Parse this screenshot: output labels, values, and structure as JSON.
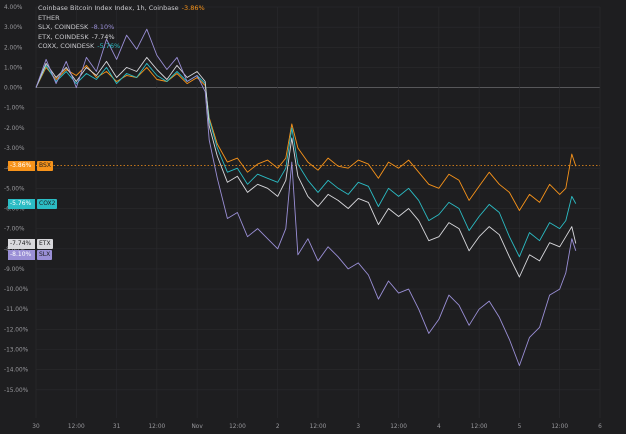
{
  "chart_data": {
    "type": "line",
    "title": "",
    "xlabel": "",
    "ylabel": "",
    "ylim": [
      -16,
      4
    ],
    "y_ticks": [
      "4.00%",
      "3.00%",
      "2.00%",
      "1.00%",
      "0.00%",
      "-1.00%",
      "-2.00%",
      "-3.00%",
      "-4.00%",
      "-5.00%",
      "-6.00%",
      "-7.00%",
      "-8.00%",
      "-9.00%",
      "-10.00%",
      "-11.00%",
      "-12.00%",
      "-13.00%",
      "-14.00%",
      "-15.00%"
    ],
    "x_ticks": [
      "30",
      "12:00",
      "31",
      "12:00",
      "Nov",
      "12:00",
      "2",
      "12:00",
      "3",
      "12:00",
      "4",
      "12:00",
      "5",
      "12:00",
      "6"
    ],
    "reference_line_value": -3.86,
    "grid": true,
    "legend_placement": "top-left",
    "legend": [
      {
        "label": "Coinbase Bitcoin Index Index, 1h, Coinbase",
        "change": "-3.86%",
        "color": "#f7931a"
      },
      {
        "label": "ETHER",
        "change": "",
        "color": "#a9a9ad"
      },
      {
        "label": "SLX, COINDESK",
        "change": "-8.10%",
        "color": "#9a8fd6"
      },
      {
        "label": "ETX, COINDESK",
        "change": "-7.74%",
        "color": "#d8d8dc"
      },
      {
        "label": "COXX, COINDESK",
        "change": "-5.76%",
        "color": "#2bbcc4"
      }
    ],
    "series": [
      {
        "key": "btc",
        "color": "#f7931a",
        "end_label": "-3.86%",
        "end_code": "BSX",
        "points": [
          [
            0,
            0
          ],
          [
            0.5,
            1.0
          ],
          [
            1,
            0.4
          ],
          [
            1.5,
            0.9
          ],
          [
            2,
            0.6
          ],
          [
            2.5,
            1.1
          ],
          [
            3,
            0.5
          ],
          [
            3.5,
            0.8
          ],
          [
            4,
            0.3
          ],
          [
            4.5,
            0.6
          ],
          [
            5,
            0.5
          ],
          [
            5.5,
            1.0
          ],
          [
            6,
            0.4
          ],
          [
            6.5,
            0.3
          ],
          [
            7,
            0.7
          ],
          [
            7.5,
            0.2
          ],
          [
            8,
            0.5
          ],
          [
            8.4,
            0.1
          ],
          [
            8.6,
            -1.5
          ],
          [
            9,
            -2.8
          ],
          [
            9.5,
            -3.7
          ],
          [
            10,
            -3.5
          ],
          [
            10.5,
            -4.2
          ],
          [
            11,
            -3.8
          ],
          [
            11.5,
            -3.6
          ],
          [
            12,
            -4.0
          ],
          [
            12.4,
            -3.5
          ],
          [
            12.7,
            -1.8
          ],
          [
            13,
            -3.0
          ],
          [
            13.5,
            -3.7
          ],
          [
            14,
            -4.1
          ],
          [
            14.5,
            -3.5
          ],
          [
            15,
            -3.9
          ],
          [
            15.5,
            -4.0
          ],
          [
            16,
            -3.6
          ],
          [
            16.5,
            -3.8
          ],
          [
            17,
            -4.5
          ],
          [
            17.5,
            -3.7
          ],
          [
            18,
            -4.0
          ],
          [
            18.5,
            -3.6
          ],
          [
            19,
            -4.2
          ],
          [
            19.5,
            -4.8
          ],
          [
            20,
            -5.0
          ],
          [
            20.5,
            -4.3
          ],
          [
            21,
            -4.6
          ],
          [
            21.5,
            -5.6
          ],
          [
            22,
            -4.9
          ],
          [
            22.5,
            -4.2
          ],
          [
            23,
            -4.8
          ],
          [
            23.5,
            -5.2
          ],
          [
            24,
            -6.1
          ],
          [
            24.5,
            -5.3
          ],
          [
            25,
            -5.7
          ],
          [
            25.5,
            -4.8
          ],
          [
            26,
            -5.3
          ],
          [
            26.3,
            -5.0
          ],
          [
            26.6,
            -3.3
          ],
          [
            26.8,
            -3.9
          ]
        ]
      },
      {
        "key": "ethx",
        "color": "#2bbcc4",
        "end_label": "-5.76%",
        "end_code": "COX2",
        "points": [
          [
            0,
            0
          ],
          [
            0.5,
            1.1
          ],
          [
            1,
            0.3
          ],
          [
            1.5,
            0.8
          ],
          [
            2,
            0.2
          ],
          [
            2.5,
            0.7
          ],
          [
            3,
            0.4
          ],
          [
            3.5,
            1.0
          ],
          [
            4,
            0.2
          ],
          [
            4.5,
            0.7
          ],
          [
            5,
            0.5
          ],
          [
            5.5,
            1.2
          ],
          [
            6,
            0.6
          ],
          [
            6.5,
            0.3
          ],
          [
            7,
            0.8
          ],
          [
            7.5,
            0.3
          ],
          [
            8,
            0.6
          ],
          [
            8.4,
            0.2
          ],
          [
            8.6,
            -1.6
          ],
          [
            9,
            -3.0
          ],
          [
            9.5,
            -4.2
          ],
          [
            10,
            -4.0
          ],
          [
            10.5,
            -4.8
          ],
          [
            11,
            -4.3
          ],
          [
            11.5,
            -4.5
          ],
          [
            12,
            -4.7
          ],
          [
            12.4,
            -4.0
          ],
          [
            12.7,
            -2.0
          ],
          [
            13,
            -3.8
          ],
          [
            13.5,
            -4.6
          ],
          [
            14,
            -5.2
          ],
          [
            14.5,
            -4.6
          ],
          [
            15,
            -5.0
          ],
          [
            15.5,
            -5.3
          ],
          [
            16,
            -4.7
          ],
          [
            16.5,
            -4.9
          ],
          [
            17,
            -5.9
          ],
          [
            17.5,
            -5.0
          ],
          [
            18,
            -5.4
          ],
          [
            18.5,
            -5.0
          ],
          [
            19,
            -5.6
          ],
          [
            19.5,
            -6.6
          ],
          [
            20,
            -6.3
          ],
          [
            20.5,
            -5.7
          ],
          [
            21,
            -6.0
          ],
          [
            21.5,
            -7.1
          ],
          [
            22,
            -6.4
          ],
          [
            22.5,
            -5.8
          ],
          [
            23,
            -6.2
          ],
          [
            23.5,
            -7.4
          ],
          [
            24,
            -8.4
          ],
          [
            24.5,
            -7.2
          ],
          [
            25,
            -7.6
          ],
          [
            25.5,
            -6.7
          ],
          [
            26,
            -7.0
          ],
          [
            26.3,
            -6.6
          ],
          [
            26.6,
            -5.4
          ],
          [
            26.8,
            -5.76
          ]
        ]
      },
      {
        "key": "etx",
        "color": "#d8d8dc",
        "end_label": "-7.74%",
        "end_code": "ETX",
        "points": [
          [
            0,
            0
          ],
          [
            0.5,
            1.2
          ],
          [
            1,
            0.5
          ],
          [
            1.5,
            1.0
          ],
          [
            2,
            0.3
          ],
          [
            2.5,
            1.0
          ],
          [
            3,
            0.6
          ],
          [
            3.5,
            1.3
          ],
          [
            4,
            0.5
          ],
          [
            4.5,
            1.0
          ],
          [
            5,
            0.8
          ],
          [
            5.5,
            1.5
          ],
          [
            6,
            0.9
          ],
          [
            6.5,
            0.4
          ],
          [
            7,
            1.1
          ],
          [
            7.5,
            0.5
          ],
          [
            8,
            0.8
          ],
          [
            8.4,
            0.3
          ],
          [
            8.6,
            -1.9
          ],
          [
            9,
            -3.4
          ],
          [
            9.5,
            -4.7
          ],
          [
            10,
            -4.4
          ],
          [
            10.5,
            -5.2
          ],
          [
            11,
            -4.8
          ],
          [
            11.5,
            -5.0
          ],
          [
            12,
            -5.4
          ],
          [
            12.4,
            -4.6
          ],
          [
            12.7,
            -2.5
          ],
          [
            13,
            -4.4
          ],
          [
            13.5,
            -5.4
          ],
          [
            14,
            -5.9
          ],
          [
            14.5,
            -5.3
          ],
          [
            15,
            -5.6
          ],
          [
            15.5,
            -6.0
          ],
          [
            16,
            -5.5
          ],
          [
            16.5,
            -5.7
          ],
          [
            17,
            -6.8
          ],
          [
            17.5,
            -6.0
          ],
          [
            18,
            -6.4
          ],
          [
            18.5,
            -6.0
          ],
          [
            19,
            -6.6
          ],
          [
            19.5,
            -7.6
          ],
          [
            20,
            -7.4
          ],
          [
            20.5,
            -6.7
          ],
          [
            21,
            -7.0
          ],
          [
            21.5,
            -8.1
          ],
          [
            22,
            -7.4
          ],
          [
            22.5,
            -6.9
          ],
          [
            23,
            -7.3
          ],
          [
            23.5,
            -8.4
          ],
          [
            24,
            -9.4
          ],
          [
            24.5,
            -8.3
          ],
          [
            25,
            -8.6
          ],
          [
            25.5,
            -7.7
          ],
          [
            26,
            -7.9
          ],
          [
            26.3,
            -7.4
          ],
          [
            26.6,
            -6.9
          ],
          [
            26.8,
            -7.74
          ]
        ]
      },
      {
        "key": "slx",
        "color": "#9a8fd6",
        "end_label": "-8.10%",
        "end_code": "SLX",
        "points": [
          [
            0,
            0
          ],
          [
            0.5,
            1.4
          ],
          [
            1,
            0.2
          ],
          [
            1.5,
            1.3
          ],
          [
            2,
            0.0
          ],
          [
            2.5,
            1.5
          ],
          [
            3,
            0.8
          ],
          [
            3.5,
            2.4
          ],
          [
            4,
            1.4
          ],
          [
            4.5,
            2.6
          ],
          [
            5,
            1.9
          ],
          [
            5.5,
            2.9
          ],
          [
            6,
            1.6
          ],
          [
            6.5,
            0.9
          ],
          [
            7,
            1.5
          ],
          [
            7.5,
            0.3
          ],
          [
            8,
            0.6
          ],
          [
            8.4,
            -0.2
          ],
          [
            8.6,
            -2.6
          ],
          [
            9,
            -4.5
          ],
          [
            9.5,
            -6.5
          ],
          [
            10,
            -6.2
          ],
          [
            10.5,
            -7.4
          ],
          [
            11,
            -7.0
          ],
          [
            11.5,
            -7.5
          ],
          [
            12,
            -8.0
          ],
          [
            12.4,
            -7.0
          ],
          [
            12.7,
            -3.7
          ],
          [
            13,
            -8.3
          ],
          [
            13.5,
            -7.5
          ],
          [
            14,
            -8.6
          ],
          [
            14.5,
            -7.9
          ],
          [
            15,
            -8.4
          ],
          [
            15.5,
            -9.0
          ],
          [
            16,
            -8.7
          ],
          [
            16.5,
            -9.3
          ],
          [
            17,
            -10.5
          ],
          [
            17.5,
            -9.6
          ],
          [
            18,
            -10.2
          ],
          [
            18.5,
            -10.0
          ],
          [
            19,
            -11.0
          ],
          [
            19.5,
            -12.2
          ],
          [
            20,
            -11.5
          ],
          [
            20.5,
            -10.3
          ],
          [
            21,
            -10.8
          ],
          [
            21.5,
            -11.8
          ],
          [
            22,
            -11.0
          ],
          [
            22.5,
            -10.6
          ],
          [
            23,
            -11.4
          ],
          [
            23.5,
            -12.5
          ],
          [
            24,
            -13.8
          ],
          [
            24.5,
            -12.4
          ],
          [
            25,
            -11.9
          ],
          [
            25.5,
            -10.3
          ],
          [
            26,
            -10.0
          ],
          [
            26.3,
            -9.2
          ],
          [
            26.6,
            -7.5
          ],
          [
            26.8,
            -8.1
          ]
        ]
      }
    ]
  }
}
